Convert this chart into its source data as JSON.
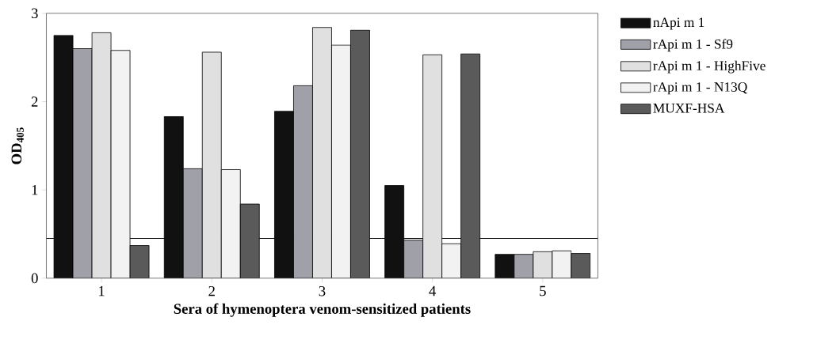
{
  "chart_data": {
    "type": "bar",
    "xlabel": "Sera of hymenoptera venom-sensitized patients",
    "ylabel": "OD$_{405}$",
    "categories": [
      "1",
      "2",
      "3",
      "4",
      "5"
    ],
    "series": [
      {
        "name": "nApi m 1",
        "color": "#111111",
        "values": [
          2.75,
          1.83,
          1.89,
          1.05,
          0.27
        ]
      },
      {
        "name": "rApi m 1 - Sf9",
        "color": "#a0a0a8",
        "values": [
          2.6,
          1.24,
          2.18,
          0.43,
          0.27
        ]
      },
      {
        "name": "rApi m 1 - HighFive",
        "color": "#e0e0e0",
        "values": [
          2.78,
          2.56,
          2.84,
          2.53,
          0.3
        ]
      },
      {
        "name": "rApi m 1 - N13Q",
        "color": "#f2f2f2",
        "values": [
          2.58,
          1.23,
          2.64,
          0.39,
          0.31
        ]
      },
      {
        "name": "MUXF-HSA",
        "color": "#5a5a5a",
        "values": [
          0.37,
          0.84,
          2.81,
          2.54,
          0.28
        ]
      }
    ],
    "ylim": [
      0,
      3
    ],
    "yticks": [
      0,
      1,
      2,
      3
    ],
    "ref_lines": [
      {
        "axis": "y",
        "value": 0.45
      }
    ],
    "legend": "top right"
  }
}
